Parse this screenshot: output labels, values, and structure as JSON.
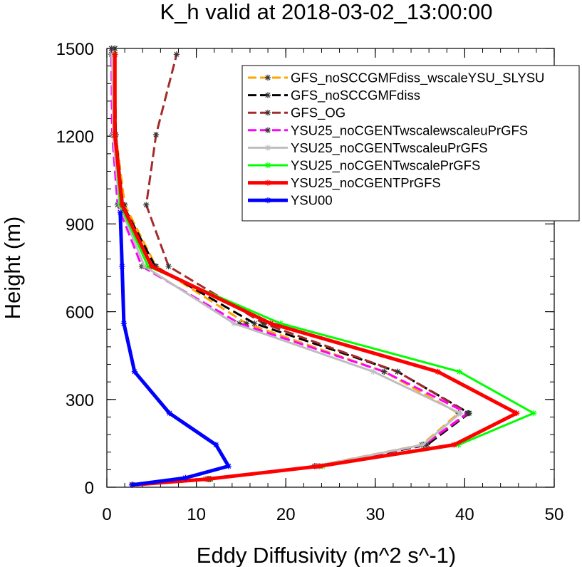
{
  "chart_data": {
    "type": "line",
    "title": "K_h valid at 2018-03-02_13:00:00",
    "xlabel": "Eddy Diffusivity (m^2 s^-1)",
    "ylabel": "Height (m)",
    "xlim": [
      0,
      50
    ],
    "ylim": [
      0,
      1500
    ],
    "xticks": [
      0,
      10,
      20,
      30,
      40,
      50
    ],
    "yticks": [
      0,
      300,
      600,
      900,
      1200,
      1500
    ],
    "x_tick_labels": [
      "0",
      "10",
      "20",
      "30",
      "40",
      "50"
    ],
    "y_tick_labels": [
      "0",
      "300",
      "600",
      "900",
      "1200",
      "1500"
    ],
    "grid": false,
    "legend_position": "top-right",
    "series": [
      {
        "name": "GFS_noSCCGMFdiss_wscaleYSU_SLYSU",
        "color": "#FFA500",
        "dash": "dashed",
        "width": 3,
        "x": [
          2.8,
          11.2,
          23.2,
          35.2,
          39.3,
          31,
          15.6,
          5.5,
          2.0,
          1.0,
          0.9,
          0.9
        ],
        "y": [
          8,
          28,
          72,
          145,
          253,
          395,
          560,
          755,
          965,
          1205,
          1480,
          1500
        ]
      },
      {
        "name": "GFS_noSCCGMFdiss",
        "color": "#000000",
        "dash": "dashed",
        "width": 3,
        "x": [
          2.9,
          11.6,
          23.6,
          35.8,
          40.5,
          32.5,
          16.5,
          5.4,
          1.8,
          1.0,
          0.9,
          0.9
        ],
        "y": [
          8,
          28,
          72,
          145,
          253,
          395,
          560,
          755,
          965,
          1205,
          1480,
          1500
        ]
      },
      {
        "name": "GFS_OG",
        "color": "#A52A2A",
        "dash": "dashed",
        "width": 3,
        "x": [
          2.9,
          11.4,
          23.4,
          35.5,
          40.4,
          32.5,
          17.5,
          6.9,
          4.4,
          5.5,
          7.8
        ],
        "y": [
          8,
          28,
          72,
          145,
          253,
          395,
          560,
          755,
          965,
          1205,
          1480
        ]
      },
      {
        "name": "YSU25_noCGENTwscalewscaleuPrGFS",
        "color": "#FF00FF",
        "dash": "dashed",
        "width": 3,
        "x": [
          2.8,
          11.0,
          23.4,
          35.4,
          40.3,
          31.0,
          14.8,
          3.9,
          1.2,
          0.6,
          0.5,
          0.5
        ],
        "y": [
          8,
          28,
          72,
          145,
          253,
          395,
          560,
          755,
          965,
          1205,
          1480,
          1500
        ]
      },
      {
        "name": "YSU25_noCGENTwscaleuPrGFS",
        "color": "#BEBEBE",
        "dash": "solid",
        "width": 3,
        "x": [
          2.8,
          11.0,
          23.3,
          35.3,
          39.5,
          29.8,
          14.2,
          4.2,
          1.4,
          0.7,
          0.6
        ],
        "y": [
          8,
          28,
          72,
          145,
          253,
          395,
          560,
          755,
          965,
          1205,
          1480
        ]
      },
      {
        "name": "YSU25_noCGENTwscalePrGFS",
        "color": "#00FF00",
        "dash": "solid",
        "width": 3,
        "x": [
          3.0,
          11.5,
          24.1,
          39.3,
          47.7,
          39.4,
          19.4,
          4.6,
          1.5,
          0.9,
          0.9
        ],
        "y": [
          8,
          28,
          72,
          145,
          253,
          395,
          560,
          755,
          965,
          1205,
          1480
        ]
      },
      {
        "name": "YSU25_noCGENTPrGFS",
        "color": "#FF0000",
        "dash": "solid",
        "width": 5,
        "x": [
          2.9,
          11.3,
          23.8,
          38.8,
          45.8,
          37.0,
          18.3,
          5.0,
          1.7,
          0.9,
          0.9
        ],
        "y": [
          8,
          28,
          72,
          145,
          253,
          395,
          560,
          755,
          965,
          1205,
          1480
        ]
      },
      {
        "name": "YSU00",
        "color": "#0000FF",
        "dash": "solid",
        "width": 5,
        "x": [
          2.8,
          8.8,
          13.6,
          12.2,
          7.0,
          3.1,
          1.9,
          1.7,
          1.5
        ],
        "y": [
          8,
          32,
          72,
          145,
          253,
          395,
          560,
          755,
          940
        ]
      }
    ]
  }
}
